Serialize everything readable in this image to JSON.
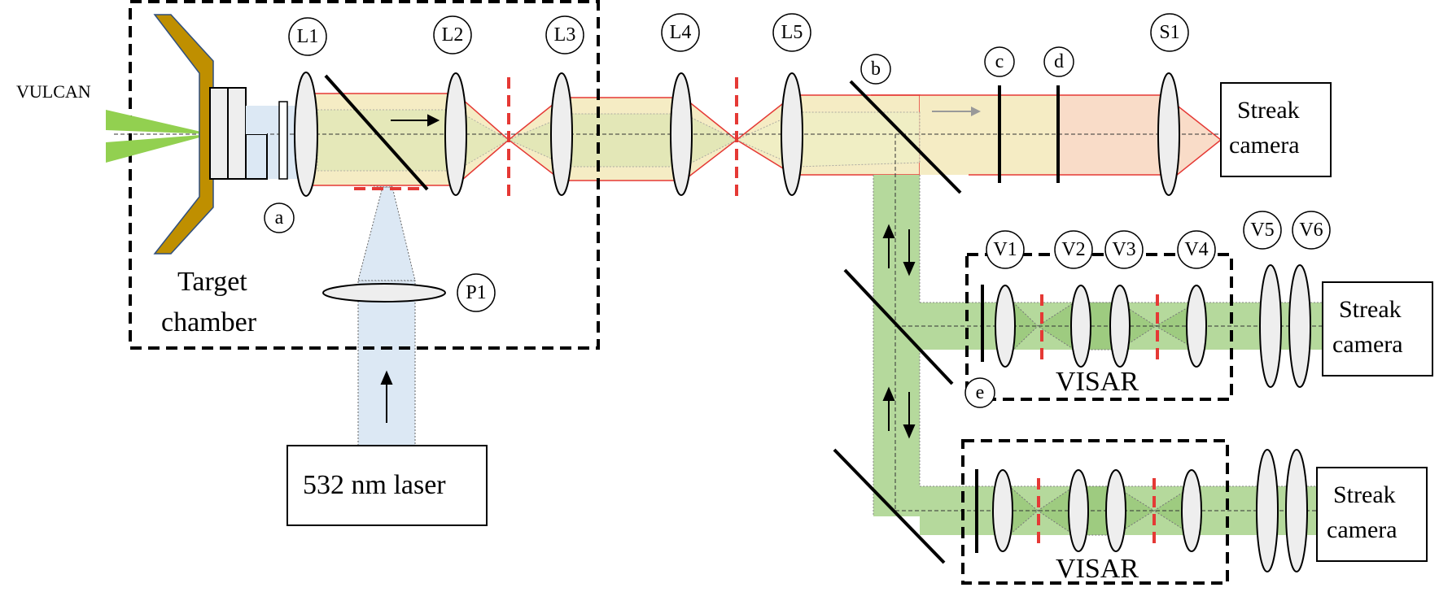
{
  "labels": {
    "vulcan": "VULCAN",
    "target_chamber_line1": "Target",
    "target_chamber_line2": "chamber",
    "laser": "532 nm laser",
    "streak_top_line1": "Streak",
    "streak_top_line2": "camera",
    "streak_mid_line1": "Streak",
    "streak_mid_line2": "camera",
    "streak_bot_line1": "Streak",
    "streak_bot_line2": "camera",
    "visar_top": "VISAR",
    "visar_bottom": "VISAR"
  },
  "circle_labels": {
    "L1": "L1",
    "L2": "L2",
    "L3": "L3",
    "L4": "L4",
    "L5": "L5",
    "S1": "S1",
    "P1": "P1",
    "a": "a",
    "b": "b",
    "c": "c",
    "d": "d",
    "e": "e",
    "V1": "V1",
    "V2": "V2",
    "V3": "V3",
    "V4": "V4",
    "V5": "V5",
    "V6": "V6"
  },
  "colors": {
    "green_beam": "#b5d99c",
    "yellow_beam": "#f5ecc4",
    "pink_beam": "#f9dcc8",
    "blue_beam": "#dce8f4",
    "red_edge": "#e53935",
    "target_gold": "#bf8f00",
    "vulcan_green": "#92d050"
  }
}
